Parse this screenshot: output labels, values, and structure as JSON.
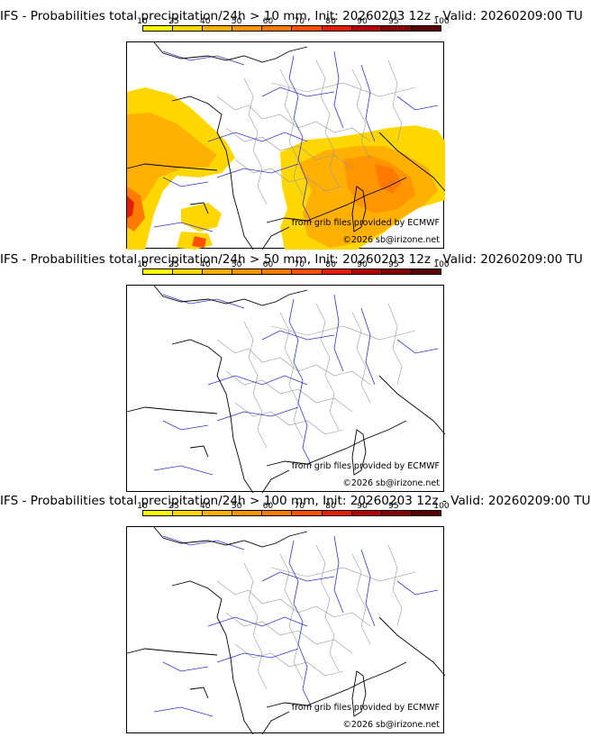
{
  "colorbar": {
    "ticks": [
      "10",
      "25",
      "40",
      "50",
      "60",
      "70",
      "80",
      "90",
      "95",
      "100"
    ],
    "colors": [
      "#ffff00",
      "#ffd700",
      "#ffb000",
      "#ff9500",
      "#ff7a00",
      "#ff5000",
      "#e61e00",
      "#b40000",
      "#870000",
      "#5a0000"
    ]
  },
  "panels": [
    {
      "title": "IFS - Probabilities total precipitation/24h > 10 mm, Init: 20260203 12z - Valid: 20260209:00 TU"
    },
    {
      "title": "IFS - Probabilities total precipitation/24h > 50 mm, Init: 20260203 12z - Valid: 20260209:00 TU"
    },
    {
      "title": "IFS - Probabilities total precipitation/24h > 100 mm, Init: 20260203 12z - Valid: 20260209:00 TU"
    }
  ],
  "credits": {
    "grib": "from grib files provided by ECMWF",
    "copyright": "©2026 sb@irizone.net"
  },
  "style": {
    "coast": "#000000",
    "rivers": "#3333cc",
    "borders": "#999999"
  }
}
